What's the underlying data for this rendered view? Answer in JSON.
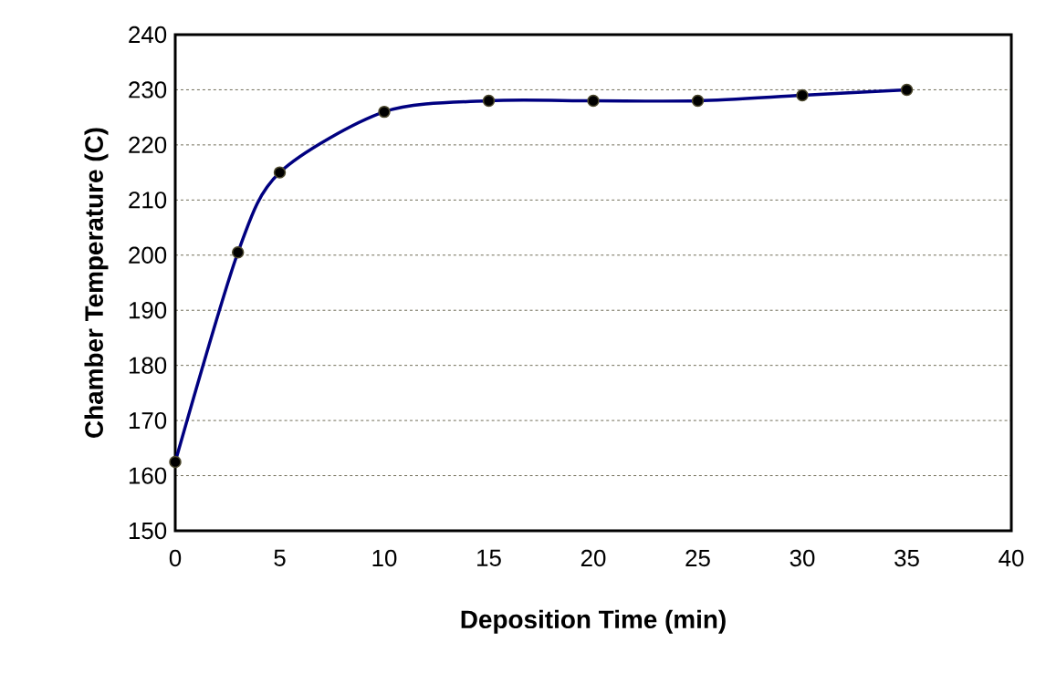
{
  "chart_data": {
    "type": "line",
    "xlabel": "Deposition Time (min)",
    "ylabel": "Chamber Temperature (C)",
    "x": [
      0,
      3,
      5,
      10,
      15,
      20,
      25,
      30,
      35
    ],
    "series": [
      {
        "color": "#000080",
        "values": [
          162.5,
          200.5,
          215,
          226,
          228,
          228,
          228,
          229,
          230
        ]
      }
    ],
    "xlim": [
      0,
      40
    ],
    "xticks": [
      0,
      5,
      10,
      15,
      20,
      25,
      30,
      35,
      40
    ],
    "ylim": [
      150,
      240
    ],
    "yticks": [
      150,
      160,
      170,
      180,
      190,
      200,
      210,
      220,
      230,
      240
    ],
    "grid": "y",
    "marker": "circle",
    "line_style": "solid"
  }
}
